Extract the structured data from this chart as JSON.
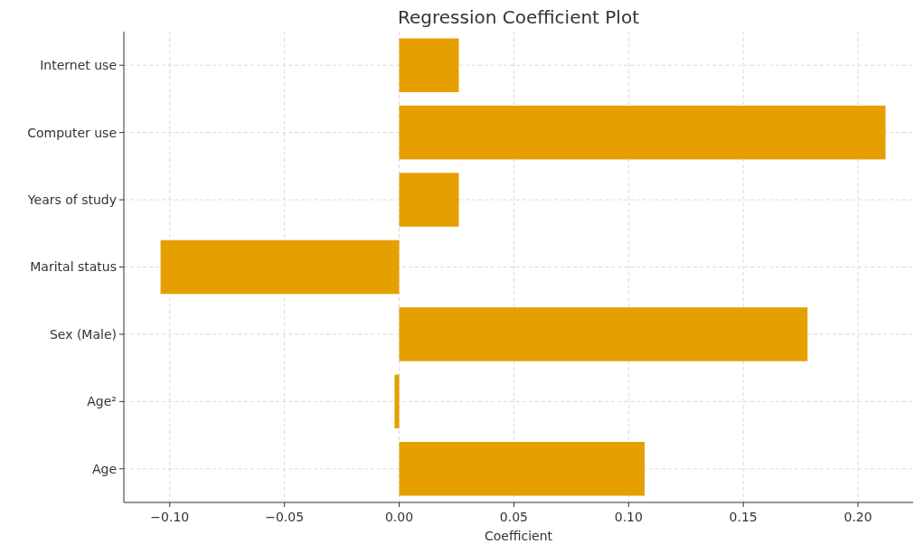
{
  "chart_data": {
    "type": "bar",
    "orientation": "horizontal",
    "title": "Regression Coefficient Plot",
    "xlabel": "Coefficient",
    "categories": [
      "Internet use",
      "Computer use",
      "Years of study",
      "Marital status",
      "Sex (Male)",
      "Age²",
      "Age"
    ],
    "values": [
      0.026,
      0.212,
      0.026,
      -0.104,
      0.178,
      -0.002,
      0.107
    ],
    "color": "#e5a000",
    "xlim": [
      -0.12,
      0.224
    ],
    "xticks": [
      {
        "value": -0.1,
        "label": "−0.10"
      },
      {
        "value": -0.05,
        "label": "−0.05"
      },
      {
        "value": 0,
        "label": "0.00"
      },
      {
        "value": 0.05,
        "label": "0.05"
      },
      {
        "value": 0.1,
        "label": "0.10"
      },
      {
        "value": 0.15,
        "label": "0.15"
      },
      {
        "value": 0.2,
        "label": "0.20"
      }
    ],
    "grid": true
  }
}
